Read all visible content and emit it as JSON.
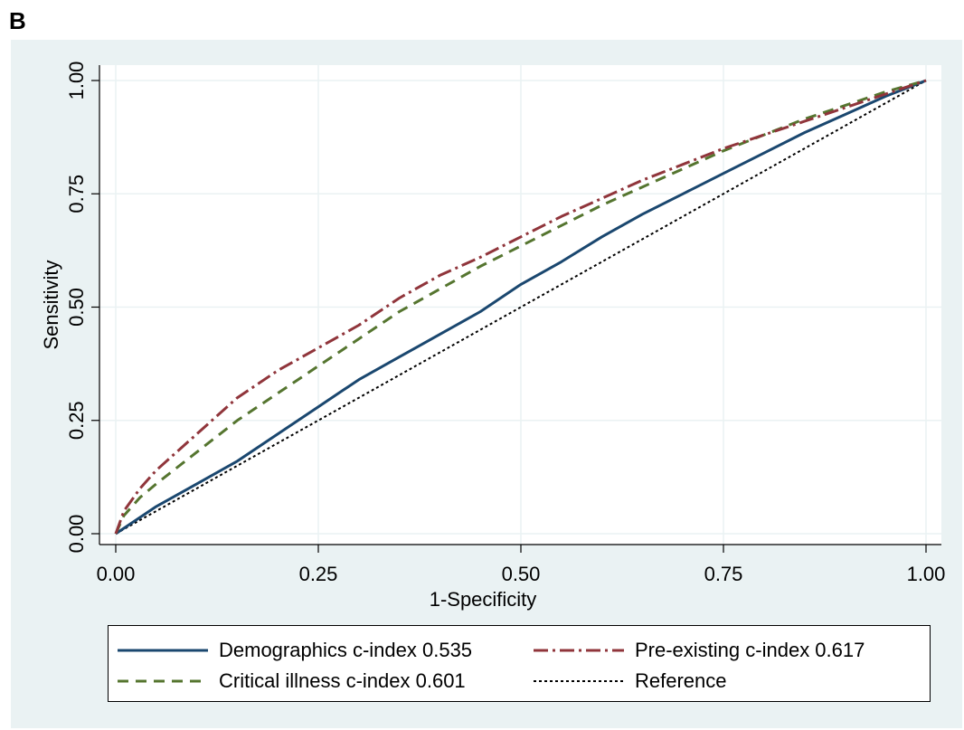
{
  "panel_label": "B",
  "chart_data": {
    "type": "line",
    "xlabel": "1-Specificity",
    "ylabel": "Sensitivity",
    "xlim": [
      0,
      1
    ],
    "ylim": [
      0,
      1
    ],
    "xticks": [
      "0.00",
      "0.25",
      "0.50",
      "0.75",
      "1.00"
    ],
    "yticks": [
      "0.00",
      "0.25",
      "0.50",
      "0.75",
      "1.00"
    ],
    "grid": true,
    "legend_position": "bottom",
    "series": [
      {
        "name": "Demographics c-index 0.535",
        "color": "#1a476f",
        "dash": "solid",
        "x": [
          0,
          0.05,
          0.1,
          0.15,
          0.2,
          0.25,
          0.3,
          0.35,
          0.4,
          0.45,
          0.5,
          0.55,
          0.6,
          0.65,
          0.7,
          0.75,
          0.8,
          0.85,
          0.9,
          0.95,
          1.0
        ],
        "y": [
          0,
          0.06,
          0.11,
          0.16,
          0.22,
          0.28,
          0.34,
          0.39,
          0.44,
          0.49,
          0.55,
          0.6,
          0.655,
          0.705,
          0.75,
          0.795,
          0.84,
          0.885,
          0.925,
          0.965,
          1.0
        ]
      },
      {
        "name": "Pre-existing c-index 0.617",
        "color": "#90353b",
        "dash": "dashdot",
        "x": [
          0,
          0.01,
          0.03,
          0.05,
          0.1,
          0.15,
          0.2,
          0.25,
          0.3,
          0.35,
          0.4,
          0.45,
          0.5,
          0.55,
          0.6,
          0.65,
          0.7,
          0.75,
          0.8,
          0.85,
          0.9,
          0.95,
          1.0
        ],
        "y": [
          0,
          0.05,
          0.1,
          0.14,
          0.22,
          0.3,
          0.36,
          0.41,
          0.46,
          0.52,
          0.57,
          0.61,
          0.655,
          0.7,
          0.74,
          0.78,
          0.815,
          0.85,
          0.88,
          0.91,
          0.94,
          0.97,
          1.0
        ]
      },
      {
        "name": "Critical illness c-index 0.601",
        "color": "#55752f",
        "dash": "dashed",
        "x": [
          0,
          0.01,
          0.03,
          0.05,
          0.1,
          0.15,
          0.2,
          0.25,
          0.3,
          0.35,
          0.4,
          0.45,
          0.5,
          0.55,
          0.6,
          0.65,
          0.7,
          0.75,
          0.8,
          0.85,
          0.9,
          0.95,
          1.0
        ],
        "y": [
          0,
          0.04,
          0.08,
          0.11,
          0.18,
          0.25,
          0.31,
          0.37,
          0.43,
          0.49,
          0.54,
          0.59,
          0.635,
          0.68,
          0.725,
          0.765,
          0.805,
          0.845,
          0.88,
          0.915,
          0.945,
          0.975,
          1.0
        ]
      },
      {
        "name": "Reference",
        "color": "#000000",
        "dash": "dotted",
        "x": [
          0,
          1
        ],
        "y": [
          0,
          1
        ]
      }
    ]
  }
}
